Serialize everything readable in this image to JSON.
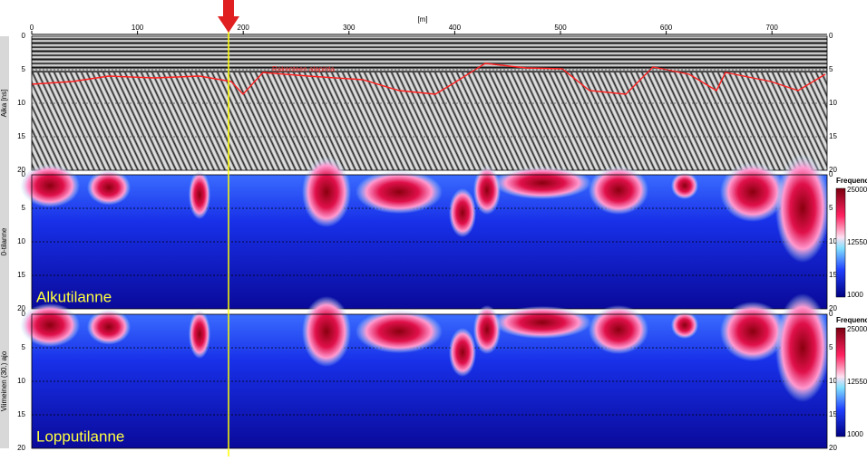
{
  "distance_axis": {
    "label": "[m]",
    "ticks": [
      "0",
      "100",
      "200",
      "300",
      "400",
      "500",
      "600",
      "700"
    ]
  },
  "panels": [
    {
      "ylabel": "Aika [ns]",
      "ticks": [
        "0",
        "5",
        "10",
        "15",
        "20"
      ],
      "annotation": "Rakenteen alapinta"
    },
    {
      "ylabel": "0-tilanne",
      "ticks": [
        "0",
        "5",
        "10",
        "15",
        "20"
      ],
      "caption": "Alkutilanne",
      "colorbar": {
        "title": "Frequency",
        "labels": [
          "25000",
          "12550",
          "1000"
        ]
      }
    },
    {
      "ylabel": "Viimeinen (30.) ajo",
      "ticks": [
        "0",
        "5",
        "10",
        "15",
        "20"
      ],
      "caption": "Lopputilanne",
      "colorbar": {
        "title": "Frequency",
        "labels": [
          "25000",
          "12550",
          "1000"
        ]
      }
    }
  ]
}
